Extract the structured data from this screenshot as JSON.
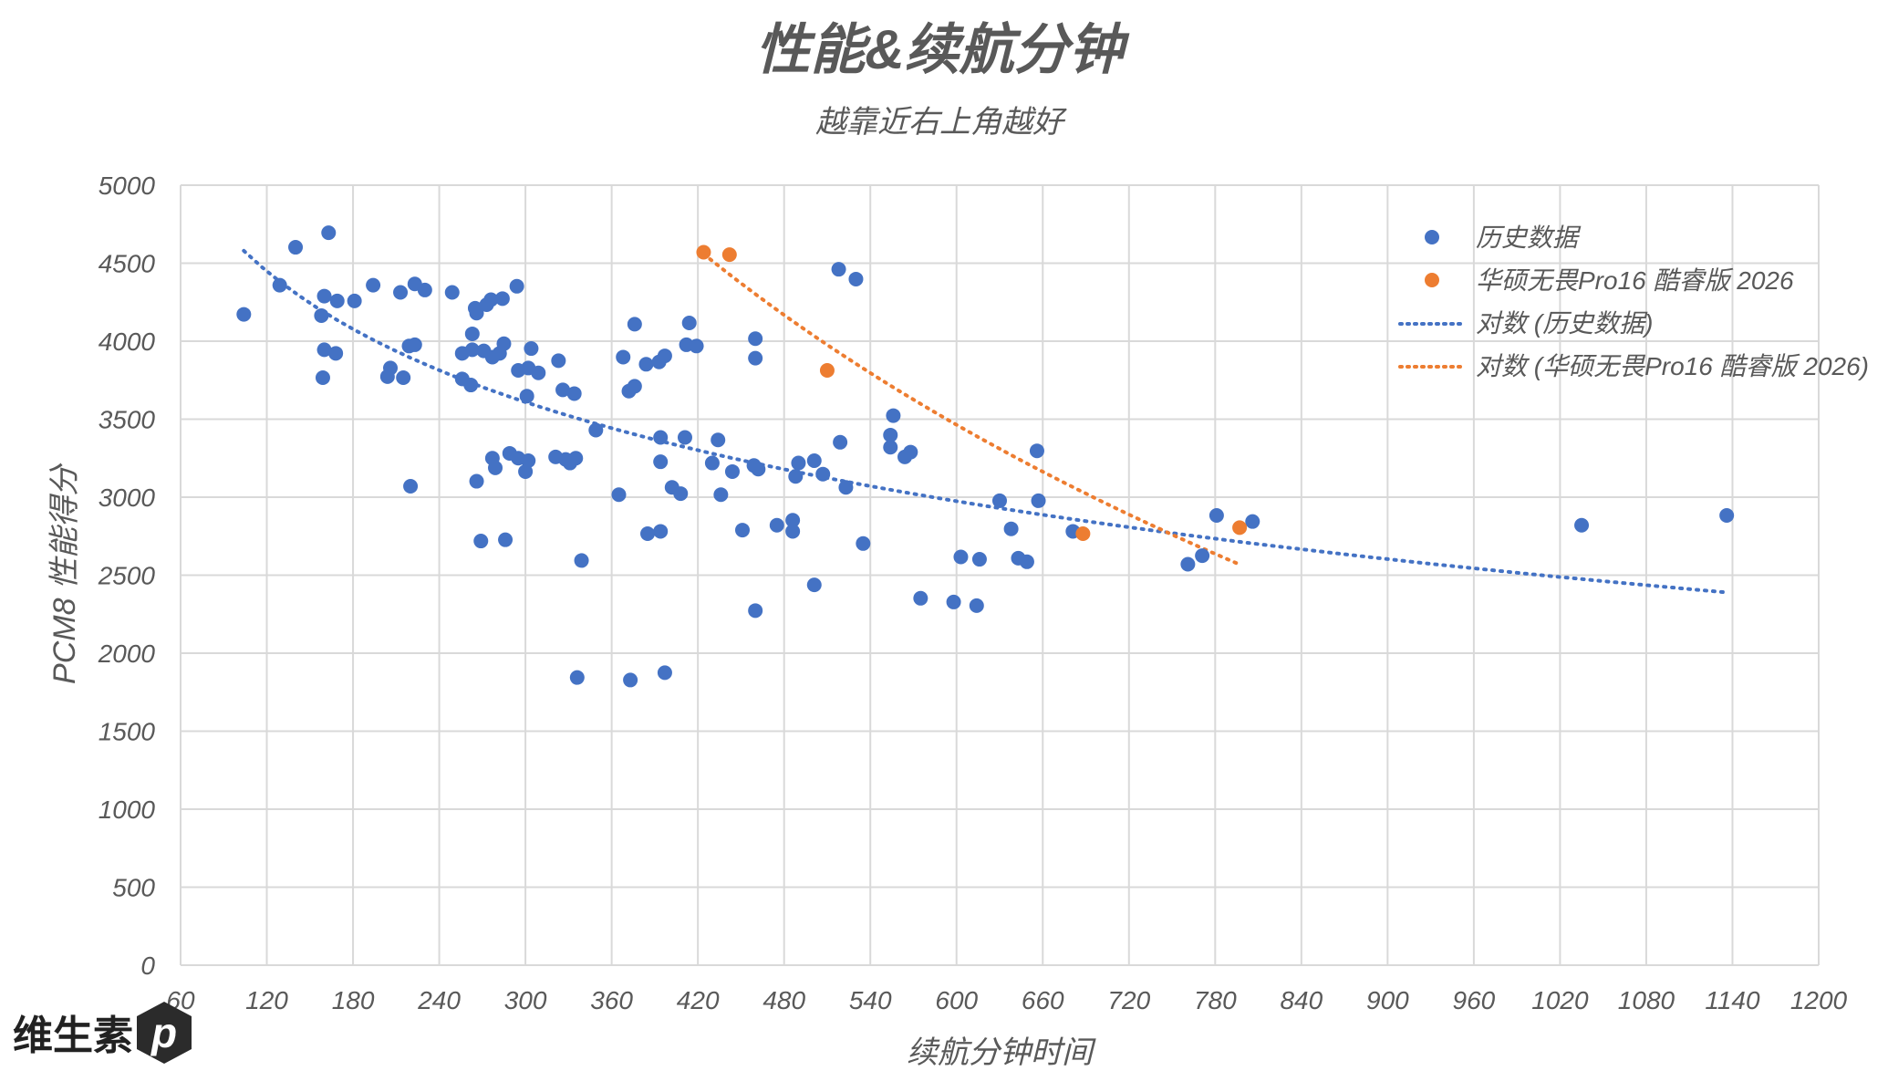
{
  "chart_data": {
    "type": "scatter",
    "title": "性能&续航分钟",
    "subtitle": "越靠近右上角越好",
    "xlabel": "续航分钟时间",
    "ylabel": "PCM8 性能得分",
    "xlim": [
      60,
      1200
    ],
    "ylim": [
      0,
      5000
    ],
    "xticks": [
      60,
      120,
      180,
      240,
      300,
      360,
      420,
      480,
      540,
      600,
      660,
      720,
      780,
      840,
      900,
      960,
      1020,
      1080,
      1140,
      1200
    ],
    "yticks": [
      0,
      500,
      1000,
      1500,
      2000,
      2500,
      3000,
      3500,
      4000,
      4500,
      5000
    ],
    "grid": true,
    "legend_position": "top-right",
    "series": [
      {
        "name": "历史数据",
        "color": "#4472C4",
        "points": [
          [
            104,
            4172
          ],
          [
            129,
            4359
          ],
          [
            140,
            4602
          ],
          [
            163,
            4695
          ],
          [
            160,
            4289
          ],
          [
            169,
            4258
          ],
          [
            181,
            4258
          ],
          [
            158,
            4164
          ],
          [
            160,
            3945
          ],
          [
            168,
            3922
          ],
          [
            159,
            3766
          ],
          [
            194,
            4359
          ],
          [
            213,
            4313
          ],
          [
            223,
            4367
          ],
          [
            230,
            4328
          ],
          [
            249,
            4313
          ],
          [
            219,
            3969
          ],
          [
            223,
            3977
          ],
          [
            206,
            3828
          ],
          [
            204,
            3773
          ],
          [
            215,
            3766
          ],
          [
            220,
            3070
          ],
          [
            266,
            4180
          ],
          [
            265,
            4211
          ],
          [
            273,
            4234
          ],
          [
            276,
            4266
          ],
          [
            284,
            4273
          ],
          [
            294,
            4352
          ],
          [
            263,
            4047
          ],
          [
            256,
            3922
          ],
          [
            263,
            3945
          ],
          [
            271,
            3938
          ],
          [
            277,
            3898
          ],
          [
            282,
            3922
          ],
          [
            285,
            3984
          ],
          [
            304,
            3953
          ],
          [
            256,
            3758
          ],
          [
            262,
            3719
          ],
          [
            295,
            3813
          ],
          [
            302,
            3828
          ],
          [
            309,
            3797
          ],
          [
            301,
            3648
          ],
          [
            323,
            3875
          ],
          [
            326,
            3688
          ],
          [
            334,
            3664
          ],
          [
            266,
            3102
          ],
          [
            277,
            3250
          ],
          [
            279,
            3188
          ],
          [
            289,
            3281
          ],
          [
            295,
            3250
          ],
          [
            300,
            3164
          ],
          [
            302,
            3234
          ],
          [
            321,
            3258
          ],
          [
            328,
            3242
          ],
          [
            331,
            3219
          ],
          [
            335,
            3250
          ],
          [
            269,
            2719
          ],
          [
            286,
            2727
          ],
          [
            339,
            2594
          ],
          [
            336,
            1844
          ],
          [
            349,
            3430
          ],
          [
            365,
            3016
          ],
          [
            368,
            3898
          ],
          [
            372,
            3680
          ],
          [
            376,
            3711
          ],
          [
            376,
            4109
          ],
          [
            384,
            3852
          ],
          [
            393,
            3867
          ],
          [
            397,
            3906
          ],
          [
            412,
            3977
          ],
          [
            414,
            4117
          ],
          [
            419,
            3969
          ],
          [
            394,
            3383
          ],
          [
            411,
            3383
          ],
          [
            394,
            3227
          ],
          [
            402,
            3063
          ],
          [
            408,
            3023
          ],
          [
            385,
            2766
          ],
          [
            394,
            2781
          ],
          [
            373,
            1828
          ],
          [
            397,
            1875
          ],
          [
            430,
            3219
          ],
          [
            434,
            3367
          ],
          [
            436,
            3016
          ],
          [
            444,
            3164
          ],
          [
            451,
            2789
          ],
          [
            460,
            4016
          ],
          [
            460,
            3891
          ],
          [
            459,
            3203
          ],
          [
            462,
            3180
          ],
          [
            460,
            2273
          ],
          [
            475,
            2820
          ],
          [
            486,
            2852
          ],
          [
            486,
            2781
          ],
          [
            490,
            3219
          ],
          [
            488,
            3133
          ],
          [
            501,
            3234
          ],
          [
            507,
            3148
          ],
          [
            501,
            2438
          ],
          [
            518,
            4461
          ],
          [
            530,
            4398
          ],
          [
            519,
            3352
          ],
          [
            523,
            3063
          ],
          [
            535,
            2703
          ],
          [
            556,
            3523
          ],
          [
            554,
            3398
          ],
          [
            554,
            3320
          ],
          [
            564,
            3258
          ],
          [
            568,
            3289
          ],
          [
            575,
            2352
          ],
          [
            598,
            2328
          ],
          [
            603,
            2617
          ],
          [
            614,
            2305
          ],
          [
            616,
            2602
          ],
          [
            630,
            2977
          ],
          [
            638,
            2797
          ],
          [
            643,
            2609
          ],
          [
            649,
            2586
          ],
          [
            656,
            3297
          ],
          [
            657,
            2977
          ],
          [
            681,
            2781
          ],
          [
            761,
            2570
          ],
          [
            771,
            2625
          ],
          [
            781,
            2883
          ],
          [
            806,
            2844
          ],
          [
            1035,
            2820
          ],
          [
            1136,
            2883
          ]
        ]
      },
      {
        "name": "华硕无畏Pro16 酷睿版 2026",
        "color": "#ED7D31",
        "points": [
          [
            424,
            4570
          ],
          [
            442,
            4555
          ],
          [
            510,
            3813
          ],
          [
            688,
            2766
          ],
          [
            797,
            2805
          ]
        ]
      }
    ],
    "trendlines": [
      {
        "name": "对数 (历史数据)",
        "type": "log",
        "a": 8834,
        "b": -916,
        "x_range": [
          104,
          1136
        ],
        "color": "#4472C4"
      },
      {
        "name": "对数 (华硕无畏Pro16 酷睿版 2026)",
        "type": "log",
        "a": 23640,
        "b": -3154,
        "x_range": [
          424,
          797
        ],
        "color": "#ED7D31"
      }
    ]
  },
  "logo": {
    "text": "维生素",
    "mark": "p"
  },
  "watermark": "@维生素P"
}
